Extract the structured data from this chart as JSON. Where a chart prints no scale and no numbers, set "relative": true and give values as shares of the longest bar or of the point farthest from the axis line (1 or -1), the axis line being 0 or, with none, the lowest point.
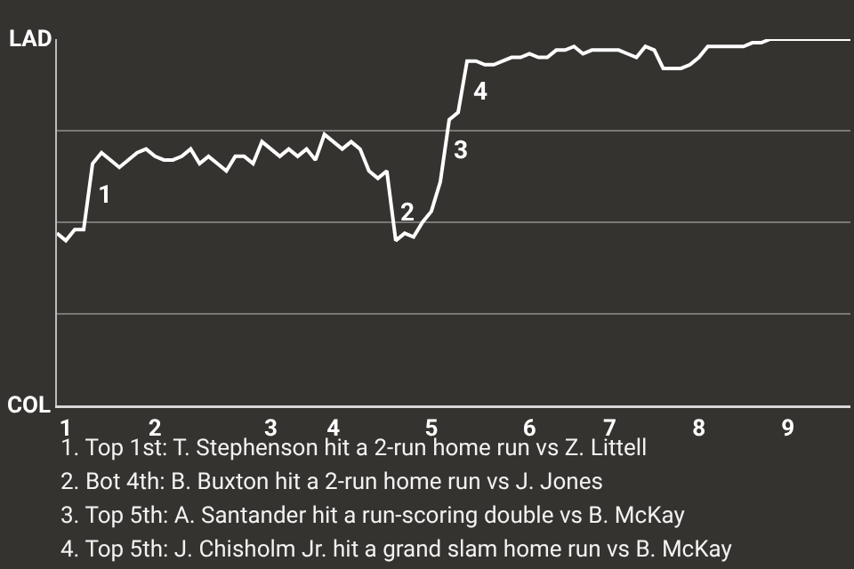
{
  "chart_data": {
    "type": "line",
    "relative": true,
    "categories": [
      null,
      "1",
      null,
      null,
      null,
      null,
      null,
      null,
      null,
      null,
      null,
      "2",
      null,
      null,
      null,
      null,
      null,
      null,
      null,
      null,
      null,
      null,
      null,
      null,
      "3",
      null,
      null,
      null,
      null,
      null,
      null,
      "4",
      null,
      null,
      null,
      null,
      null,
      null,
      null,
      null,
      null,
      null,
      "5",
      null,
      null,
      null,
      null,
      null,
      null,
      null,
      null,
      null,
      null,
      "6",
      null,
      null,
      null,
      null,
      null,
      null,
      null,
      null,
      "7",
      null,
      null,
      null,
      null,
      null,
      null,
      null,
      null,
      null,
      "8",
      null,
      null,
      null,
      null,
      null,
      null,
      null,
      null,
      null,
      "9",
      null,
      null,
      null,
      null,
      null,
      null,
      null
    ],
    "series": [
      {
        "color": "#ffffff",
        "values": [
          0.47,
          0.45,
          0.48,
          0.48,
          0.66,
          0.69,
          0.67,
          0.65,
          0.67,
          0.69,
          0.7,
          0.68,
          0.67,
          0.67,
          0.68,
          0.7,
          0.66,
          0.68,
          0.66,
          0.64,
          0.68,
          0.68,
          0.66,
          0.72,
          0.7,
          0.68,
          0.7,
          0.68,
          0.7,
          0.67,
          0.74,
          0.72,
          0.7,
          0.72,
          0.7,
          0.64,
          0.62,
          0.64,
          0.45,
          0.47,
          0.46,
          0.5,
          0.53,
          0.61,
          0.78,
          0.8,
          0.94,
          0.94,
          0.93,
          0.93,
          0.94,
          0.95,
          0.95,
          0.96,
          0.95,
          0.95,
          0.97,
          0.97,
          0.98,
          0.96,
          0.97,
          0.97,
          0.97,
          0.97,
          0.96,
          0.95,
          0.98,
          0.97,
          0.92,
          0.92,
          0.92,
          0.93,
          0.95,
          0.98,
          0.98,
          0.98,
          0.98,
          0.98,
          0.99,
          0.99,
          1,
          1,
          1,
          1,
          1,
          1,
          1,
          1,
          1,
          1
        ],
        "name": null
      }
    ],
    "grid": "y",
    "marker": "none",
    "line_style": "solid",
    "annotations": [
      "LAD",
      "COL",
      {
        "text": "1",
        "y": 0.66
      },
      {
        "text": "2",
        "y": 0.45
      },
      {
        "text": "3",
        "y": 0.78
      },
      {
        "text": "4",
        "y": 0.94
      },
      "1. Top 1st: T. Stephenson hit a 2-run home run vs Z. Littell",
      "2. Bot 4th: B. Buxton hit a 2-run home run vs J. Jones",
      "3. Top 5th: A. Santander hit a run-scoring double vs B. McKay",
      "4. Top 5th: J. Chisholm Jr. hit a grand slam home run vs B. McKay"
    ]
  }
}
